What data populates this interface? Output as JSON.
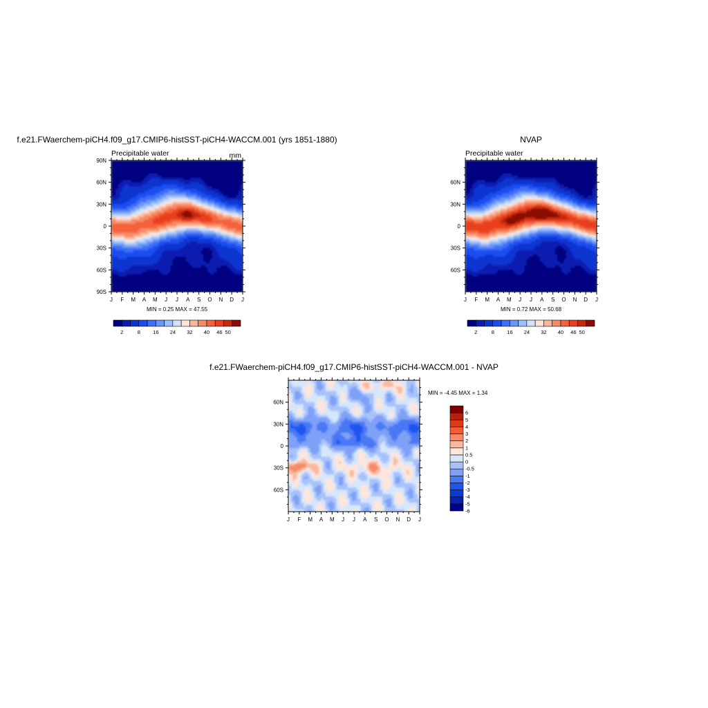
{
  "panels": {
    "model": {
      "title": "f.e21.FWaerchem-piCH4.f09_g17.CMIP6-histSST-piCH4-WACCM.001 (yrs 1851-1880)",
      "subtitle_left": "Precipitable water",
      "subtitle_right": "mm",
      "stats": "MIN =   0.25 MAX =  47.55"
    },
    "obs": {
      "title": "NVAP",
      "subtitle_left": "Precipitable water",
      "stats": "MIN =   0.72 MAX =  50.68"
    },
    "diff": {
      "title": "f.e21.FWaerchem-piCH4.f09_g17.CMIP6-histSST-piCH4-WACCM.001 - NVAP",
      "stats": "MIN =  -4.45 MAX =   1.34"
    }
  },
  "chart_data": [
    {
      "type": "heatmap",
      "title": "f.e21.FWaerchem-piCH4.f09_g17.CMIP6-histSST-piCH4-WACCM.001 (yrs 1851-1880)",
      "subtitle": "Precipitable water",
      "units": "mm",
      "x_ticks": [
        "J",
        "F",
        "M",
        "A",
        "M",
        "J",
        "J",
        "A",
        "S",
        "O",
        "N",
        "D",
        "J"
      ],
      "y_ticks": [
        "90N",
        "60N",
        "30N",
        "0",
        "30S",
        "60S",
        "90S"
      ],
      "ylim": [
        -90,
        90
      ],
      "min": 0.25,
      "max": 47.55,
      "colorbar_labels": [
        "2",
        "8",
        "16",
        "24",
        "32",
        "40",
        "46",
        "50"
      ],
      "itcz_peak_month": "Aug",
      "itcz_peak_value": 47.55
    },
    {
      "type": "heatmap",
      "title": "NVAP",
      "subtitle": "Precipitable water",
      "x_ticks": [
        "J",
        "F",
        "M",
        "A",
        "M",
        "J",
        "J",
        "A",
        "S",
        "O",
        "N",
        "D",
        "J"
      ],
      "y_ticks": [
        "60N",
        "30N",
        "0",
        "30S",
        "60S"
      ],
      "ylim": [
        -90,
        90
      ],
      "min": 0.72,
      "max": 50.68,
      "colorbar_labels": [
        "2",
        "8",
        "16",
        "24",
        "32",
        "40",
        "46",
        "50"
      ]
    },
    {
      "type": "heatmap",
      "title": "f.e21.FWaerchem-piCH4.f09_g17.CMIP6-histSST-piCH4-WACCM.001 - NVAP",
      "x_ticks": [
        "J",
        "F",
        "M",
        "A",
        "M",
        "J",
        "J",
        "A",
        "S",
        "O",
        "N",
        "D",
        "J"
      ],
      "y_ticks": [
        "60N",
        "30N",
        "0",
        "30S",
        "60S"
      ],
      "ylim": [
        -90,
        90
      ],
      "min": -4.45,
      "max": 1.34,
      "colorbar_labels": [
        "6",
        "5",
        "4",
        "3",
        "2",
        "1",
        "0.5",
        "0",
        "-0.5",
        "-1",
        "-2",
        "-3",
        "-4",
        "-5",
        "-6"
      ]
    }
  ],
  "colors": {
    "abs_palette": [
      "#000080",
      "#0a1fb0",
      "#0d36d0",
      "#1b4ef0",
      "#3c6ff5",
      "#6a96f7",
      "#9cbef9",
      "#cfe1fb",
      "#fde3d6",
      "#f9b59a",
      "#f78a65",
      "#f4623d",
      "#e8401d",
      "#c42a10",
      "#8a0d05"
    ],
    "diff_palette": [
      "#00008a",
      "#0622b0",
      "#0d3ad4",
      "#1e55f0",
      "#4878f4",
      "#7ea0f7",
      "#a8c2f9",
      "#d7e6fb",
      "#fde6dc",
      "#f9b9a1",
      "#f78b67",
      "#f45c34",
      "#dd3a18",
      "#b8200a",
      "#800000"
    ]
  }
}
